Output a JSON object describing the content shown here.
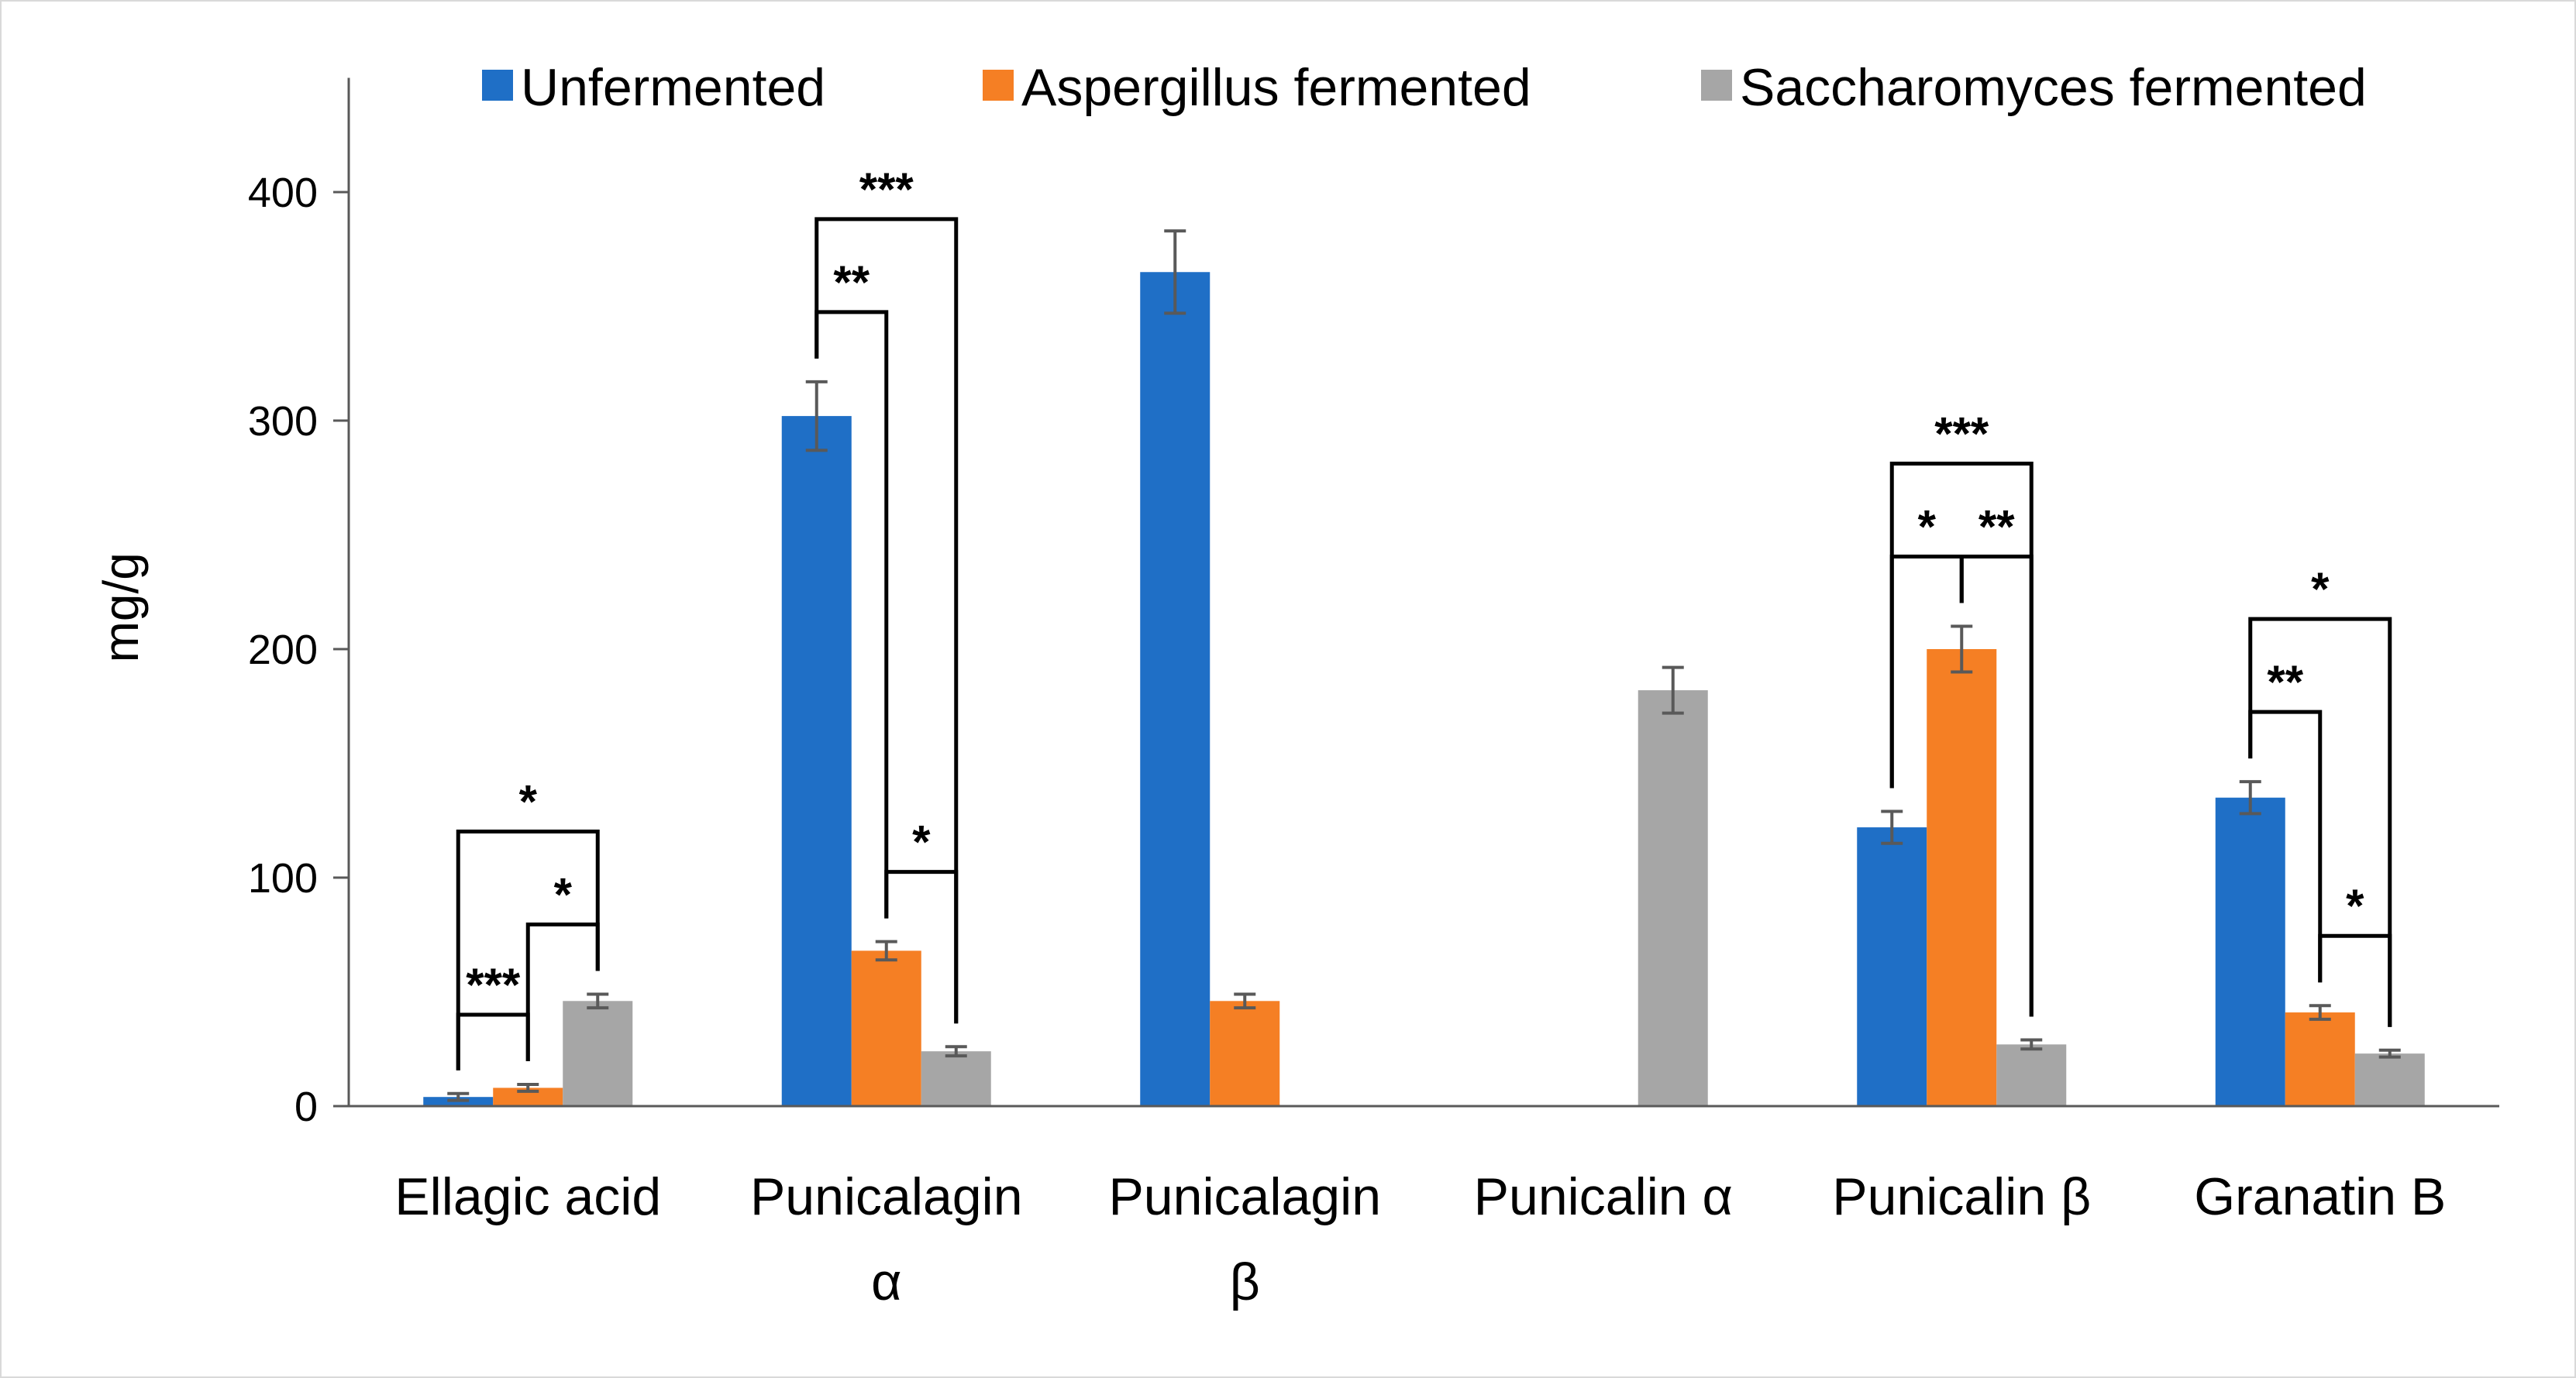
{
  "chart_data": {
    "type": "bar",
    "title": "",
    "xlabel": "",
    "ylabel": "mg/g",
    "ylim": [
      0,
      450
    ],
    "yticks": [
      0,
      100,
      200,
      300,
      400
    ],
    "legend_position": "top",
    "categories": [
      [
        "Ellagic acid"
      ],
      [
        "Punicalagin",
        "α"
      ],
      [
        "Punicalagin",
        "β"
      ],
      [
        "Punicalin α"
      ],
      [
        "Punicalin β"
      ],
      [
        "Granatin B"
      ]
    ],
    "series": [
      {
        "name": "Unfermented",
        "color": "#1f6fc6",
        "values": [
          4,
          302,
          365,
          0,
          122,
          135
        ],
        "errors": [
          1.5,
          15,
          18,
          0,
          7,
          7
        ]
      },
      {
        "name": "Aspergillus fermented",
        "color": "#f57f24",
        "values": [
          8,
          68,
          46,
          0,
          200,
          41
        ],
        "errors": [
          1.5,
          4,
          3,
          0,
          10,
          3
        ]
      },
      {
        "name": "Saccharomyces fermented",
        "color": "#a6a6a6",
        "values": [
          46,
          24,
          0,
          182,
          27,
          23
        ],
        "errors": [
          3,
          2,
          0,
          10,
          2,
          1.5
        ]
      }
    ],
    "significance": [
      {
        "category": 0,
        "from": 0,
        "to": 1,
        "label": "***"
      },
      {
        "category": 0,
        "from": 1,
        "to": 2,
        "label": "*"
      },
      {
        "category": 0,
        "from": 0,
        "to": 2,
        "label": "*"
      },
      {
        "category": 1,
        "from": 0,
        "to": 1,
        "label": "**"
      },
      {
        "category": 1,
        "from": 1,
        "to": 2,
        "label": "*"
      },
      {
        "category": 1,
        "from": 0,
        "to": 2,
        "label": "***"
      },
      {
        "category": 4,
        "from": 0,
        "to": 1,
        "label": "*"
      },
      {
        "category": 4,
        "from": 1,
        "to": 2,
        "label": "**"
      },
      {
        "category": 4,
        "from": 0,
        "to": 2,
        "label": "***"
      },
      {
        "category": 5,
        "from": 0,
        "to": 1,
        "label": "**"
      },
      {
        "category": 5,
        "from": 1,
        "to": 2,
        "label": "*"
      },
      {
        "category": 5,
        "from": 0,
        "to": 2,
        "label": "*"
      }
    ]
  }
}
